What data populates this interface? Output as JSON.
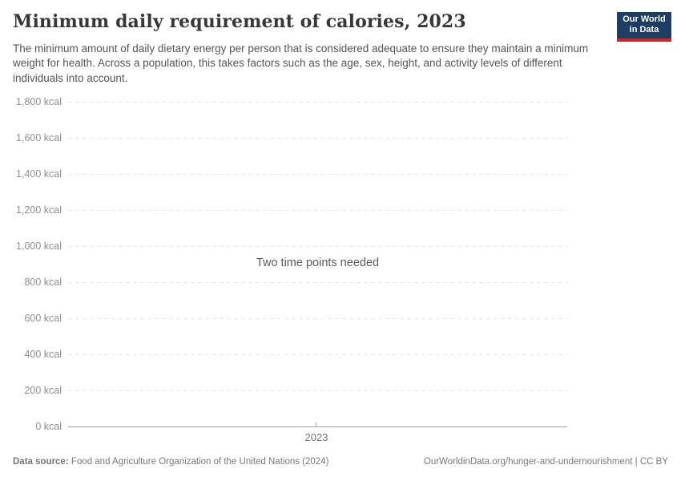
{
  "header": {
    "title": "Minimum daily requirement of calories, 2023",
    "subtitle": "The minimum amount of daily dietary energy per person that is considered adequate to ensure they maintain a minimum weight for health. Across a population, this takes factors such as the age, sex, height, and activity levels of different individuals into account.",
    "logo": {
      "line1": "Our World",
      "line2": "in Data",
      "bg_color": "#1d3d63",
      "stripe_color": "#cf2428"
    }
  },
  "chart_data": {
    "type": "line",
    "title": "Minimum daily requirement of calories, 2023",
    "series": [],
    "empty_state_message": "Two time points needed",
    "xlabel": "",
    "ylabel": "",
    "x_ticks": [
      "2023"
    ],
    "y_tick_values": [
      1800,
      1600,
      1400,
      1200,
      1000,
      800,
      600,
      400,
      200,
      0
    ],
    "y_tick_labels": [
      "1,800 kcal",
      "1,600 kcal",
      "1,400 kcal",
      "1,200 kcal",
      "1,000 kcal",
      "800 kcal",
      "600 kcal",
      "400 kcal",
      "200 kcal",
      "0 kcal"
    ],
    "ylim": [
      0,
      1800
    ],
    "grid": true,
    "gridline_color": "#e7e7e7",
    "axis_line_color": "#a3a3a3"
  },
  "footer": {
    "datasource_label": "Data source:",
    "datasource_value": "Food and Agriculture Organization of the United Nations (2024)",
    "link": "OurWorldinData.org/hunger-and-undernourishment | CC BY"
  }
}
